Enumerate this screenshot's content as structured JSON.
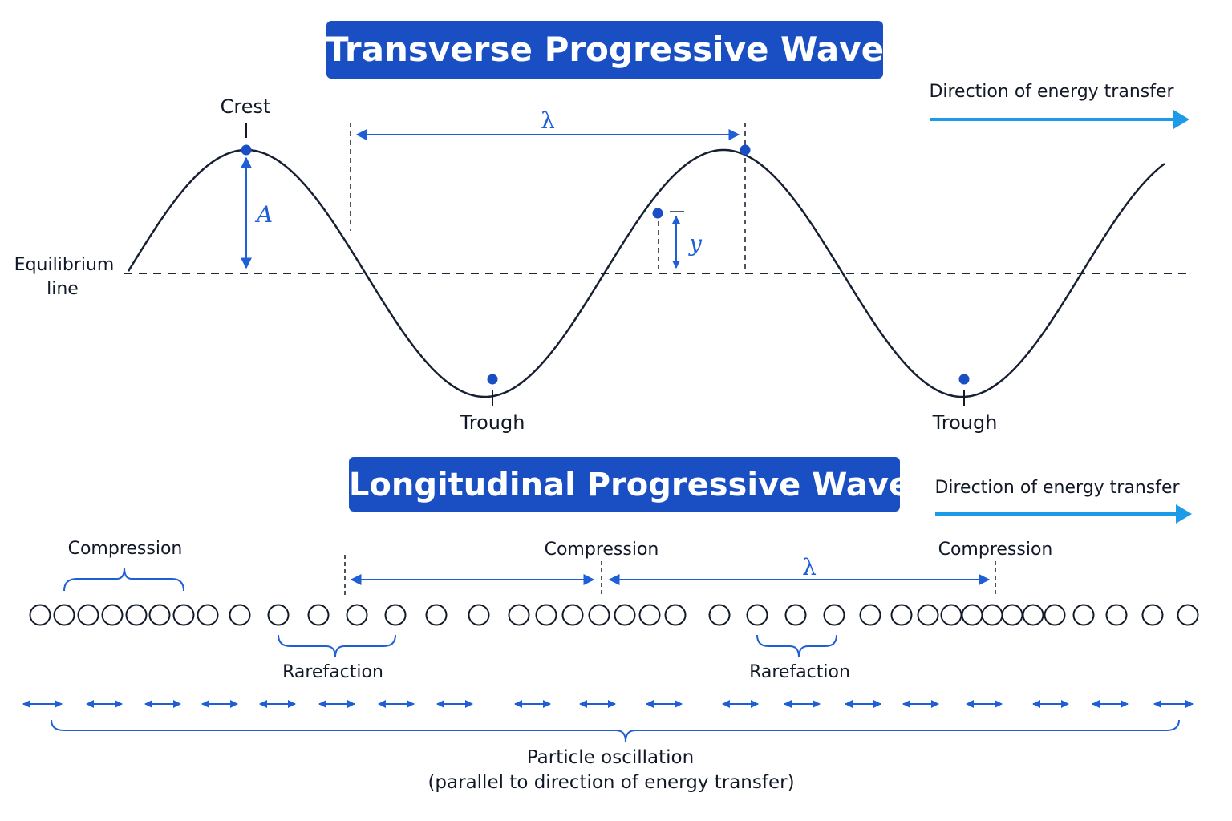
{
  "transverse": {
    "title": "Transverse Progressive Wave",
    "direction_label": "Direction of energy transfer",
    "crest_label": "Crest",
    "trough_labels": [
      "Trough",
      "Trough"
    ],
    "equilibrium_label": [
      "Equilibrium",
      "line"
    ],
    "amplitude_symbol": "A",
    "wavelength_symbol": "λ",
    "displacement_symbol": "y"
  },
  "longitudinal": {
    "title": "Longitudinal Progressive Wave",
    "direction_label": "Direction of energy transfer",
    "compression_labels": [
      "Compression",
      "Compression",
      "Compression"
    ],
    "rarefaction_labels": [
      "Rarefaction",
      "Rarefaction"
    ],
    "wavelength_symbol": "λ",
    "oscillation_label": [
      "Particle oscillation",
      "(parallel to direction of energy transfer)"
    ]
  },
  "colors": {
    "title_bg": "#1a4fc4",
    "accent_blue": "#1f5fd6",
    "arrow_light_blue": "#1e9be8",
    "wave_line": "#172033",
    "text": "#111827"
  }
}
